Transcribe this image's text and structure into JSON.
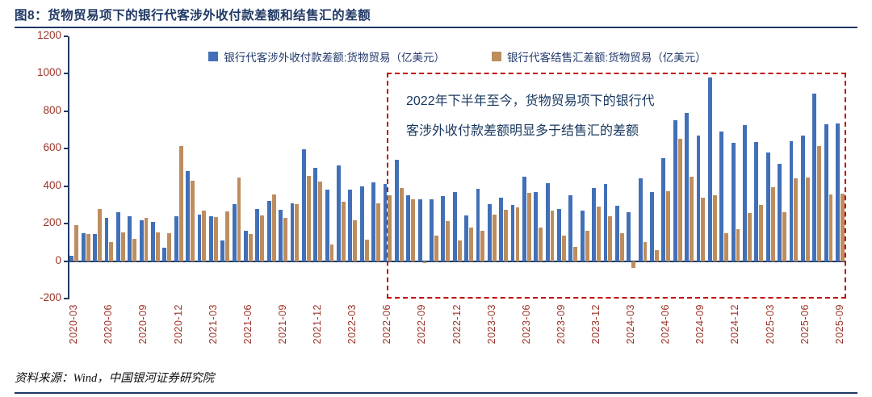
{
  "header": {
    "title": "图8：货物贸易项下的银行代客涉外收付款差额和结售汇的差额"
  },
  "footer": {
    "source": "资料来源：Wind，中国银河证券研究院"
  },
  "chart_data": {
    "type": "bar",
    "title": "货物贸易项下的银行代客涉外收付款差额和结售汇的差额",
    "ylim": [
      -200,
      1200
    ],
    "yticks": [
      1200,
      1000,
      800,
      600,
      400,
      200,
      0,
      -200
    ],
    "x_label_every": 3,
    "grid": false,
    "legend_position": "top",
    "colors": {
      "title": "#1F3864",
      "axis_labels": "#9A3328",
      "axis_line": "#1F3864",
      "annotation_border": "#C00000",
      "annotation_text": "#17365D"
    },
    "annotation": {
      "text": "2022年下半年至今，货物贸易项下的银行代客涉外收付款差额明显多于结售汇的差额"
    },
    "categories": [
      "2020-03",
      "2020-04",
      "2020-05",
      "2020-06",
      "2020-07",
      "2020-08",
      "2020-09",
      "2020-10",
      "2020-11",
      "2020-12",
      "2021-01",
      "2021-02",
      "2021-03",
      "2021-04",
      "2021-05",
      "2021-06",
      "2021-07",
      "2021-08",
      "2021-09",
      "2021-10",
      "2021-11",
      "2021-12",
      "2022-01",
      "2022-02",
      "2022-03",
      "2022-04",
      "2022-05",
      "2022-06",
      "2022-07",
      "2022-08",
      "2022-09",
      "2022-10",
      "2022-11",
      "2022-12",
      "2023-01",
      "2023-02",
      "2023-03",
      "2023-04",
      "2023-05",
      "2023-06",
      "2023-07",
      "2023-08",
      "2023-09",
      "2023-10",
      "2023-11",
      "2023-12",
      "2024-01",
      "2024-02",
      "2024-03",
      "2024-04",
      "2024-05",
      "2024-06",
      "2024-07",
      "2024-08",
      "2024-09",
      "2024-10",
      "2024-11",
      "2024-12",
      "2025-01",
      "2025-02",
      "2025-03",
      "2025-04",
      "2025-05",
      "2025-06",
      "2025-07",
      "2025-08",
      "2025-09"
    ],
    "series": [
      {
        "name": "银行代客涉外收付款差额:货物贸易（亿美元）",
        "color": "#4170B8",
        "values": [
          30,
          150,
          145,
          230,
          260,
          240,
          220,
          210,
          70,
          240,
          480,
          250,
          240,
          110,
          305,
          160,
          280,
          320,
          275,
          310,
          595,
          500,
          380,
          510,
          380,
          400,
          420,
          410,
          540,
          350,
          330,
          330,
          345,
          370,
          245,
          385,
          305,
          340,
          300,
          450,
          370,
          415,
          280,
          350,
          270,
          390,
          410,
          295,
          260,
          440,
          370,
          550,
          750,
          790,
          670,
          980,
          690,
          630,
          725,
          635,
          580,
          520,
          640,
          670,
          895,
          730,
          735
        ]
      },
      {
        "name": "银行代客结售汇差额:货物贸易（亿美元）",
        "color": "#BE8D5E",
        "values": [
          190,
          145,
          280,
          100,
          155,
          120,
          230,
          155,
          150,
          615,
          430,
          270,
          235,
          265,
          445,
          145,
          245,
          355,
          230,
          305,
          455,
          425,
          90,
          315,
          220,
          115,
          310,
          350,
          390,
          330,
          -10,
          135,
          215,
          110,
          180,
          160,
          250,
          275,
          285,
          365,
          180,
          270,
          135,
          75,
          160,
          290,
          240,
          150,
          -35,
          100,
          60,
          375,
          655,
          450,
          340,
          350,
          150,
          170,
          255,
          300,
          395,
          260,
          440,
          445,
          615,
          355,
          360
        ]
      }
    ]
  }
}
